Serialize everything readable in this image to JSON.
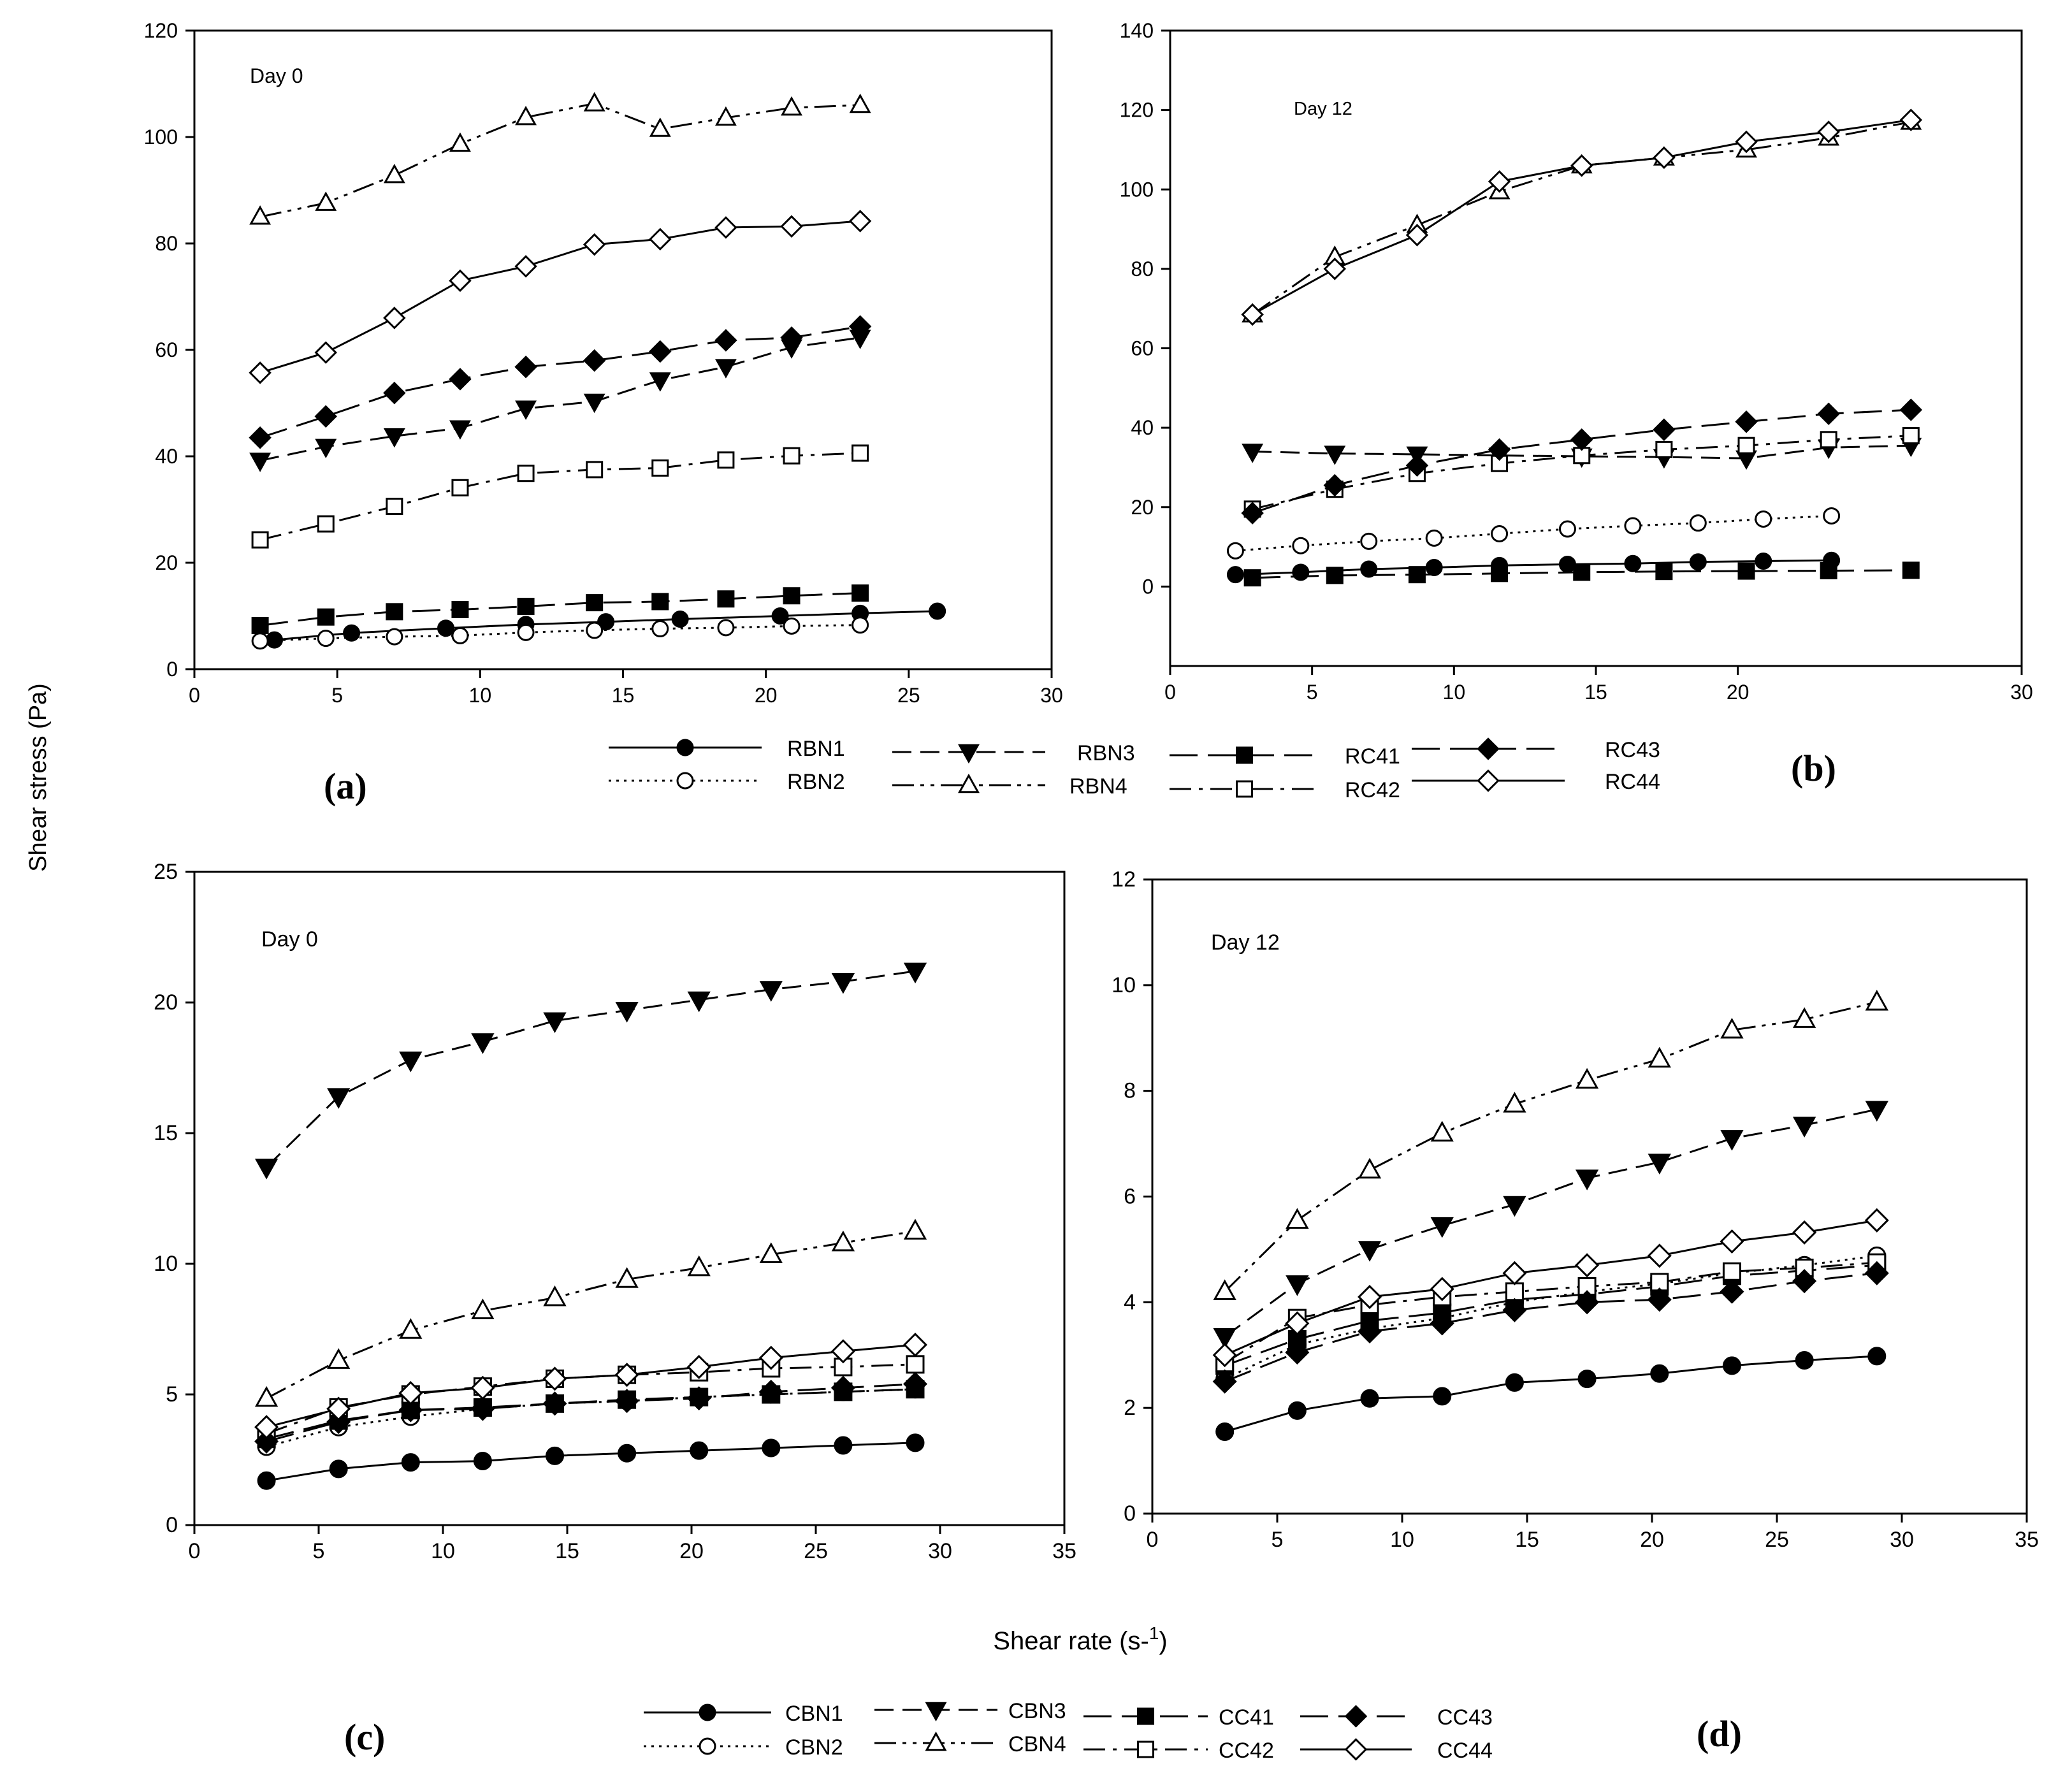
{
  "figure": {
    "y_axis_label": "Shear stress (Pa)",
    "x_axis_label": "Shear rate (s-1)"
  },
  "panel_labels": {
    "a": "(a)",
    "b": "(b)",
    "c": "(c)",
    "d": "(d)"
  },
  "legend_top": [
    "RBN1",
    "RBN3",
    "RC41",
    "RC43",
    "RBN2",
    "RBN4",
    "RC42",
    "RC44"
  ],
  "legend_bottom": [
    "CBN1",
    "CBN3",
    "CC41",
    "CC43",
    "CBN2",
    "CBN4",
    "CC42",
    "CC44"
  ],
  "chart_data": [
    {
      "panel": "a",
      "type": "line",
      "title": "Day 0",
      "xlim": [
        0,
        30
      ],
      "ylim": [
        0,
        120
      ],
      "xticks": [
        0,
        5,
        10,
        15,
        20,
        25,
        30
      ],
      "yticks": [
        0,
        20,
        40,
        60,
        80,
        100,
        120
      ],
      "series": [
        {
          "name": "RBN1",
          "x": [
            2.8,
            5.5,
            8.8,
            11.6,
            14.4,
            17.0,
            20.5,
            23.3,
            26.0
          ],
          "y": [
            5.5,
            6.8,
            7.7,
            8.4,
            8.9,
            9.4,
            10.0,
            10.5,
            10.9
          ]
        },
        {
          "name": "RBN2",
          "x": [
            2.3,
            4.6,
            7.0,
            9.3,
            11.6,
            14.0,
            16.3,
            18.6,
            20.9,
            23.3
          ],
          "y": [
            5.3,
            5.8,
            6.1,
            6.3,
            6.9,
            7.3,
            7.6,
            7.8,
            8.1,
            8.3
          ]
        },
        {
          "name": "RBN3",
          "x": [
            2.3,
            4.6,
            7.0,
            9.3,
            11.6,
            14.0,
            16.3,
            18.6,
            20.9,
            23.3
          ],
          "y": [
            39.2,
            41.8,
            43.8,
            45.3,
            49.0,
            50.3,
            54.3,
            56.8,
            60.5,
            62.3
          ]
        },
        {
          "name": "RBN4",
          "x": [
            2.3,
            4.6,
            7.0,
            9.3,
            11.6,
            14.0,
            16.3,
            18.6,
            20.9,
            23.3
          ],
          "y": [
            85.0,
            87.6,
            92.8,
            98.7,
            103.7,
            106.3,
            101.5,
            103.6,
            105.5,
            106.0
          ]
        },
        {
          "name": "RC41",
          "x": [
            2.3,
            4.6,
            7.0,
            9.3,
            11.6,
            14.0,
            16.3,
            18.6,
            20.9,
            23.3
          ],
          "y": [
            8.2,
            9.8,
            10.8,
            11.2,
            11.8,
            12.5,
            12.7,
            13.2,
            13.8,
            14.3
          ]
        },
        {
          "name": "RC42",
          "x": [
            2.3,
            4.6,
            7.0,
            9.3,
            11.6,
            14.0,
            16.3,
            18.6,
            20.9,
            23.3
          ],
          "y": [
            24.3,
            27.3,
            30.6,
            34.1,
            36.8,
            37.5,
            37.8,
            39.3,
            40.1,
            40.6
          ]
        },
        {
          "name": "RC43",
          "x": [
            2.3,
            4.6,
            7.0,
            9.3,
            11.6,
            14.0,
            16.3,
            18.6,
            20.9,
            23.3
          ],
          "y": [
            43.5,
            47.5,
            51.9,
            54.5,
            56.8,
            58.0,
            59.7,
            61.8,
            62.3,
            64.4
          ]
        },
        {
          "name": "RC44",
          "x": [
            2.3,
            4.6,
            7.0,
            9.3,
            11.6,
            14.0,
            16.3,
            18.6,
            20.9,
            23.3
          ],
          "y": [
            55.7,
            59.5,
            66.0,
            73.0,
            75.7,
            79.8,
            80.8,
            83.0,
            83.2,
            84.2
          ]
        }
      ]
    },
    {
      "panel": "b",
      "type": "line",
      "title": "Day 12",
      "xlim": [
        0,
        30
      ],
      "ylim": [
        -20,
        140
      ],
      "xticks": [
        0,
        5,
        10,
        15,
        20,
        30
      ],
      "yticks": [
        0,
        20,
        40,
        60,
        80,
        100,
        120,
        140
      ],
      "series": [
        {
          "name": "RBN1",
          "x": [
            2.3,
            4.6,
            7.0,
            9.3,
            11.6,
            14.0,
            16.3,
            18.6,
            20.9,
            23.3
          ],
          "y": [
            3.0,
            3.6,
            4.4,
            4.8,
            5.3,
            5.6,
            5.8,
            6.2,
            6.4,
            6.6
          ]
        },
        {
          "name": "RBN2",
          "x": [
            2.3,
            4.6,
            7.0,
            9.3,
            11.6,
            14.0,
            16.3,
            18.6,
            20.9,
            23.3
          ],
          "y": [
            9.0,
            10.3,
            11.4,
            12.2,
            13.3,
            14.5,
            15.3,
            16.0,
            17.0,
            17.8
          ]
        },
        {
          "name": "RBN3",
          "x": [
            2.9,
            5.8,
            8.7,
            11.6,
            14.5,
            17.4,
            20.3,
            23.2,
            26.1
          ],
          "y": [
            34.0,
            33.5,
            33.3,
            33.0,
            32.8,
            32.6,
            32.3,
            35.0,
            35.5
          ]
        },
        {
          "name": "RBN4",
          "x": [
            2.9,
            5.8,
            8.7,
            11.6,
            14.5,
            17.4,
            20.3,
            23.2,
            26.1
          ],
          "y": [
            68.5,
            83.0,
            91.0,
            99.5,
            106.0,
            108.0,
            110.0,
            113.0,
            117.0
          ]
        },
        {
          "name": "RC41",
          "x": [
            2.9,
            5.8,
            8.7,
            11.6,
            14.5,
            17.4,
            20.3,
            23.2,
            26.1
          ],
          "y": [
            2.2,
            2.8,
            3.0,
            3.3,
            3.6,
            3.8,
            3.9,
            4.0,
            4.1
          ]
        },
        {
          "name": "RC42",
          "x": [
            2.9,
            5.8,
            8.7,
            11.6,
            14.5,
            17.4,
            20.3,
            23.2,
            26.1
          ],
          "y": [
            19.5,
            24.5,
            28.5,
            31.0,
            33.0,
            34.5,
            35.5,
            37.0,
            38.0
          ]
        },
        {
          "name": "RC43",
          "x": [
            2.9,
            5.8,
            8.7,
            11.6,
            14.5,
            17.4,
            20.3,
            23.2,
            26.1
          ],
          "y": [
            18.5,
            25.5,
            30.5,
            34.5,
            37.0,
            39.5,
            41.5,
            43.5,
            44.5
          ]
        },
        {
          "name": "RC44",
          "x": [
            2.9,
            5.8,
            8.7,
            11.6,
            14.5,
            17.4,
            20.3,
            23.2,
            26.1
          ],
          "y": [
            68.5,
            80.0,
            88.5,
            102.0,
            106.0,
            108.0,
            112.0,
            114.5,
            117.5
          ]
        }
      ]
    },
    {
      "panel": "c",
      "type": "line",
      "title": "Day 0",
      "xlim": [
        0,
        35
      ],
      "ylim": [
        0,
        25
      ],
      "xticks": [
        0,
        5,
        10,
        15,
        20,
        25,
        30,
        35
      ],
      "yticks": [
        0,
        5,
        10,
        15,
        20,
        25
      ],
      "series": [
        {
          "name": "CBN1",
          "x": [
            2.9,
            5.8,
            8.7,
            11.6,
            14.5,
            17.4,
            20.3,
            23.2,
            26.1,
            29.0
          ],
          "y": [
            1.7,
            2.15,
            2.4,
            2.45,
            2.65,
            2.75,
            2.85,
            2.95,
            3.05,
            3.15
          ]
        },
        {
          "name": "CBN2",
          "x": [
            2.9,
            5.8,
            8.7,
            11.6,
            14.5,
            17.4,
            20.3,
            23.2,
            26.1,
            29.0
          ],
          "y": [
            3.0,
            3.75,
            4.15,
            4.45,
            4.65,
            4.75,
            4.9,
            5.0,
            5.1,
            5.2
          ]
        },
        {
          "name": "CBN3",
          "x": [
            2.9,
            5.8,
            8.7,
            11.6,
            14.5,
            17.4,
            20.3,
            23.2,
            26.1,
            29.0
          ],
          "y": [
            13.7,
            16.4,
            17.8,
            18.5,
            19.3,
            19.7,
            20.1,
            20.5,
            20.8,
            21.2
          ]
        },
        {
          "name": "CBN4",
          "x": [
            2.9,
            5.8,
            8.7,
            11.6,
            14.5,
            17.4,
            20.3,
            23.2,
            26.1,
            29.0
          ],
          "y": [
            4.85,
            6.3,
            7.45,
            8.2,
            8.7,
            9.4,
            9.85,
            10.35,
            10.8,
            11.25
          ]
        },
        {
          "name": "CC41",
          "x": [
            2.9,
            5.8,
            8.7,
            11.6,
            14.5,
            17.4,
            20.3,
            23.2,
            26.1,
            29.0
          ],
          "y": [
            3.3,
            4.0,
            4.4,
            4.5,
            4.65,
            4.8,
            4.9,
            5.0,
            5.1,
            5.2
          ]
        },
        {
          "name": "CC42",
          "x": [
            2.9,
            5.8,
            8.7,
            11.6,
            14.5,
            17.4,
            20.3,
            23.2,
            26.1,
            29.0
          ],
          "y": [
            3.5,
            4.5,
            5.0,
            5.3,
            5.6,
            5.75,
            5.85,
            6.0,
            6.05,
            6.15
          ]
        },
        {
          "name": "CC43",
          "x": [
            2.9,
            5.8,
            8.7,
            11.6,
            14.5,
            17.4,
            20.3,
            23.2,
            26.1,
            29.0
          ],
          "y": [
            3.2,
            3.95,
            4.4,
            4.45,
            4.65,
            4.75,
            4.85,
            5.1,
            5.25,
            5.4
          ]
        },
        {
          "name": "CC44",
          "x": [
            2.9,
            5.8,
            8.7,
            11.6,
            14.5,
            17.4,
            20.3,
            23.2,
            26.1,
            29.0
          ],
          "y": [
            3.75,
            4.45,
            5.05,
            5.25,
            5.6,
            5.75,
            6.05,
            6.4,
            6.65,
            6.9
          ]
        }
      ]
    },
    {
      "panel": "d",
      "type": "line",
      "title": "Day 12",
      "xlim": [
        0,
        35
      ],
      "ylim": [
        0,
        12
      ],
      "xticks": [
        0,
        5,
        10,
        15,
        20,
        25,
        30,
        35
      ],
      "yticks": [
        0,
        2,
        4,
        6,
        8,
        10,
        12
      ],
      "series": [
        {
          "name": "CBN1",
          "x": [
            2.9,
            5.8,
            8.7,
            11.6,
            14.5,
            17.4,
            20.3,
            23.2,
            26.1,
            29.0
          ],
          "y": [
            1.55,
            1.95,
            2.18,
            2.22,
            2.48,
            2.55,
            2.65,
            2.8,
            2.9,
            2.98
          ]
        },
        {
          "name": "CBN2",
          "x": [
            2.9,
            5.8,
            8.7,
            11.6,
            14.5,
            17.4,
            20.3,
            23.2,
            26.1,
            29.0
          ],
          "y": [
            2.55,
            3.2,
            3.5,
            3.7,
            4.0,
            4.2,
            4.35,
            4.55,
            4.7,
            4.88
          ]
        },
        {
          "name": "CBN3",
          "x": [
            2.9,
            5.8,
            8.7,
            11.6,
            14.5,
            17.4,
            20.3,
            23.2,
            26.1,
            29.0
          ],
          "y": [
            3.35,
            4.35,
            5.0,
            5.45,
            5.85,
            6.35,
            6.65,
            7.1,
            7.35,
            7.65
          ]
        },
        {
          "name": "CBN4",
          "x": [
            2.9,
            5.8,
            8.7,
            11.6,
            14.5,
            17.4,
            20.3,
            23.2,
            26.1,
            29.0
          ],
          "y": [
            4.2,
            5.55,
            6.5,
            7.2,
            7.75,
            8.2,
            8.6,
            9.15,
            9.35,
            9.68
          ]
        },
        {
          "name": "CC41",
          "x": [
            2.9,
            5.8,
            8.7,
            11.6,
            14.5,
            17.4,
            20.3,
            23.2,
            26.1,
            29.0
          ],
          "y": [
            2.8,
            3.3,
            3.65,
            3.8,
            4.05,
            4.15,
            4.3,
            4.5,
            4.6,
            4.7
          ]
        },
        {
          "name": "CC42",
          "x": [
            2.9,
            5.8,
            8.7,
            11.6,
            14.5,
            17.4,
            20.3,
            23.2,
            26.1,
            29.0
          ],
          "y": [
            2.85,
            3.7,
            3.95,
            4.1,
            4.2,
            4.3,
            4.38,
            4.58,
            4.65,
            4.75
          ]
        },
        {
          "name": "CC43",
          "x": [
            2.9,
            5.8,
            8.7,
            11.6,
            14.5,
            17.4,
            20.3,
            23.2,
            26.1,
            29.0
          ],
          "y": [
            2.5,
            3.05,
            3.45,
            3.6,
            3.85,
            4.0,
            4.05,
            4.2,
            4.4,
            4.55
          ]
        },
        {
          "name": "CC44",
          "x": [
            2.9,
            5.8,
            8.7,
            11.6,
            14.5,
            17.4,
            20.3,
            23.2,
            26.1,
            29.0
          ],
          "y": [
            3.0,
            3.6,
            4.1,
            4.25,
            4.55,
            4.7,
            4.88,
            5.15,
            5.32,
            5.55
          ]
        }
      ]
    }
  ]
}
